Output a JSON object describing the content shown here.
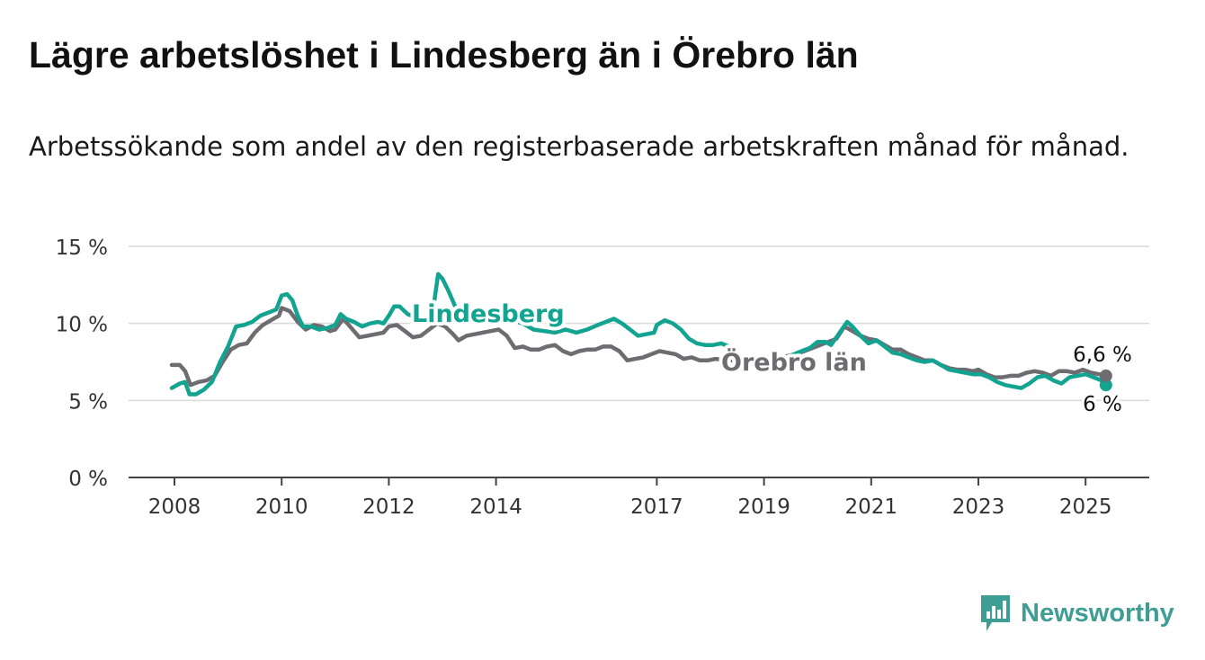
{
  "title": "Lägre arbetslöshet i Lindesberg än i Örebro län",
  "subtitle": "Arbetssökande som andel av den registerbaserade arbetskraften månad för månad.",
  "brand": {
    "name": "Newsworthy",
    "color": "#3f9e94"
  },
  "chart_data": {
    "type": "line",
    "x_range": [
      2007.95,
      2025.4
    ],
    "ylim": [
      0,
      15
    ],
    "y_ticks": [
      {
        "value": 0,
        "label": "0 %"
      },
      {
        "value": 5,
        "label": "5 %"
      },
      {
        "value": 10,
        "label": "10 %"
      },
      {
        "value": 15,
        "label": "15 %"
      }
    ],
    "x_ticks": [
      {
        "value": 2008,
        "label": "2008"
      },
      {
        "value": 2010,
        "label": "2010"
      },
      {
        "value": 2012,
        "label": "2012"
      },
      {
        "value": 2014,
        "label": "2014"
      },
      {
        "value": 2017,
        "label": "2017"
      },
      {
        "value": 2019,
        "label": "2019"
      },
      {
        "value": 2021,
        "label": "2021"
      },
      {
        "value": 2023,
        "label": "2023"
      },
      {
        "value": 2025,
        "label": "2025"
      }
    ],
    "grid": true,
    "series": [
      {
        "name": "Lindesberg",
        "color": "#12a391",
        "end_label": "6 %",
        "data": [
          [
            2007.95,
            5.8
          ],
          [
            2008.1,
            6.1
          ],
          [
            2008.2,
            6.2
          ],
          [
            2008.28,
            5.4
          ],
          [
            2008.4,
            5.4
          ],
          [
            2008.55,
            5.7
          ],
          [
            2008.7,
            6.2
          ],
          [
            2008.85,
            7.5
          ],
          [
            2009.0,
            8.5
          ],
          [
            2009.15,
            9.8
          ],
          [
            2009.3,
            9.9
          ],
          [
            2009.45,
            10.1
          ],
          [
            2009.6,
            10.5
          ],
          [
            2009.75,
            10.7
          ],
          [
            2009.9,
            10.9
          ],
          [
            2010.0,
            11.8
          ],
          [
            2010.1,
            11.9
          ],
          [
            2010.2,
            11.5
          ],
          [
            2010.3,
            10.5
          ],
          [
            2010.4,
            9.8
          ],
          [
            2010.55,
            9.8
          ],
          [
            2010.7,
            9.6
          ],
          [
            2010.85,
            9.7
          ],
          [
            2011.0,
            9.9
          ],
          [
            2011.1,
            10.6
          ],
          [
            2011.2,
            10.3
          ],
          [
            2011.35,
            10.1
          ],
          [
            2011.5,
            9.8
          ],
          [
            2011.65,
            10.0
          ],
          [
            2011.8,
            10.1
          ],
          [
            2011.9,
            10.0
          ],
          [
            2012.0,
            10.5
          ],
          [
            2012.1,
            11.1
          ],
          [
            2012.2,
            11.1
          ],
          [
            2012.35,
            10.6
          ],
          [
            2012.5,
            10.4
          ],
          [
            2012.6,
            10.1
          ],
          [
            2012.75,
            10.3
          ],
          [
            2012.85,
            11.5
          ],
          [
            2012.92,
            13.2
          ],
          [
            2013.0,
            12.9
          ],
          [
            2013.1,
            12.2
          ],
          [
            2013.3,
            10.6
          ],
          [
            2013.5,
            10.1
          ],
          [
            2013.7,
            10.3
          ],
          [
            2013.9,
            10.1
          ],
          [
            2014.1,
            10.4
          ],
          [
            2014.3,
            10.2
          ],
          [
            2014.5,
            10.0
          ],
          [
            2014.7,
            9.6
          ],
          [
            2014.9,
            9.5
          ],
          [
            2015.1,
            9.4
          ],
          [
            2015.3,
            9.6
          ],
          [
            2015.5,
            9.4
          ],
          [
            2015.7,
            9.6
          ],
          [
            2015.9,
            9.9
          ],
          [
            2016.05,
            10.1
          ],
          [
            2016.2,
            10.3
          ],
          [
            2016.35,
            10.0
          ],
          [
            2016.5,
            9.6
          ],
          [
            2016.65,
            9.2
          ],
          [
            2016.8,
            9.3
          ],
          [
            2016.95,
            9.4
          ],
          [
            2017.0,
            9.9
          ],
          [
            2017.15,
            10.2
          ],
          [
            2017.3,
            10.0
          ],
          [
            2017.45,
            9.6
          ],
          [
            2017.6,
            9.0
          ],
          [
            2017.75,
            8.7
          ],
          [
            2017.9,
            8.6
          ],
          [
            2018.05,
            8.6
          ],
          [
            2018.2,
            8.7
          ],
          [
            2018.35,
            8.5
          ],
          [
            2018.45,
            8.3
          ],
          [
            2018.55,
            7.9
          ],
          [
            2018.7,
            7.8
          ],
          [
            2018.9,
            7.7
          ],
          [
            2019.1,
            7.6
          ],
          [
            2019.3,
            7.7
          ],
          [
            2019.5,
            7.9
          ],
          [
            2019.7,
            8.2
          ],
          [
            2019.85,
            8.4
          ],
          [
            2020.0,
            8.8
          ],
          [
            2020.15,
            8.8
          ],
          [
            2020.25,
            8.6
          ],
          [
            2020.35,
            9.1
          ],
          [
            2020.45,
            9.6
          ],
          [
            2020.55,
            10.1
          ],
          [
            2020.65,
            9.8
          ],
          [
            2020.8,
            9.2
          ],
          [
            2020.95,
            8.7
          ],
          [
            2021.1,
            8.9
          ],
          [
            2021.25,
            8.5
          ],
          [
            2021.4,
            8.1
          ],
          [
            2021.55,
            8.0
          ],
          [
            2021.7,
            7.8
          ],
          [
            2021.85,
            7.6
          ],
          [
            2022.0,
            7.5
          ],
          [
            2022.15,
            7.6
          ],
          [
            2022.3,
            7.3
          ],
          [
            2022.45,
            7.0
          ],
          [
            2022.6,
            6.9
          ],
          [
            2022.75,
            6.8
          ],
          [
            2022.9,
            6.7
          ],
          [
            2023.05,
            6.7
          ],
          [
            2023.2,
            6.5
          ],
          [
            2023.35,
            6.2
          ],
          [
            2023.5,
            6.0
          ],
          [
            2023.65,
            5.9
          ],
          [
            2023.8,
            5.8
          ],
          [
            2023.95,
            6.1
          ],
          [
            2024.1,
            6.5
          ],
          [
            2024.25,
            6.6
          ],
          [
            2024.4,
            6.3
          ],
          [
            2024.55,
            6.1
          ],
          [
            2024.7,
            6.5
          ],
          [
            2024.85,
            6.6
          ],
          [
            2025.0,
            6.7
          ],
          [
            2025.15,
            6.5
          ],
          [
            2025.3,
            6.3
          ],
          [
            2025.38,
            6.0
          ]
        ]
      },
      {
        "name": "Örebro län",
        "color": "#6e6c70",
        "end_label": "6,6 %",
        "data": [
          [
            2007.95,
            7.3
          ],
          [
            2008.1,
            7.3
          ],
          [
            2008.2,
            6.9
          ],
          [
            2008.3,
            6.0
          ],
          [
            2008.45,
            6.2
          ],
          [
            2008.6,
            6.3
          ],
          [
            2008.75,
            6.6
          ],
          [
            2008.9,
            7.5
          ],
          [
            2009.05,
            8.3
          ],
          [
            2009.2,
            8.6
          ],
          [
            2009.35,
            8.7
          ],
          [
            2009.5,
            9.4
          ],
          [
            2009.65,
            9.9
          ],
          [
            2009.8,
            10.2
          ],
          [
            2009.95,
            10.5
          ],
          [
            2010.0,
            11.0
          ],
          [
            2010.15,
            10.8
          ],
          [
            2010.3,
            10.1
          ],
          [
            2010.45,
            9.6
          ],
          [
            2010.6,
            9.9
          ],
          [
            2010.75,
            9.8
          ],
          [
            2010.9,
            9.5
          ],
          [
            2011.0,
            9.6
          ],
          [
            2011.15,
            10.3
          ],
          [
            2011.3,
            9.7
          ],
          [
            2011.45,
            9.1
          ],
          [
            2011.6,
            9.2
          ],
          [
            2011.75,
            9.3
          ],
          [
            2011.9,
            9.4
          ],
          [
            2012.0,
            9.8
          ],
          [
            2012.15,
            9.9
          ],
          [
            2012.3,
            9.5
          ],
          [
            2012.45,
            9.1
          ],
          [
            2012.6,
            9.2
          ],
          [
            2012.75,
            9.6
          ],
          [
            2012.9,
            10.0
          ],
          [
            2013.05,
            9.8
          ],
          [
            2013.2,
            9.3
          ],
          [
            2013.3,
            8.9
          ],
          [
            2013.45,
            9.2
          ],
          [
            2013.6,
            9.3
          ],
          [
            2013.75,
            9.4
          ],
          [
            2013.9,
            9.5
          ],
          [
            2014.05,
            9.6
          ],
          [
            2014.2,
            9.2
          ],
          [
            2014.35,
            8.4
          ],
          [
            2014.5,
            8.5
          ],
          [
            2014.65,
            8.3
          ],
          [
            2014.8,
            8.3
          ],
          [
            2014.95,
            8.5
          ],
          [
            2015.1,
            8.6
          ],
          [
            2015.25,
            8.2
          ],
          [
            2015.4,
            8.0
          ],
          [
            2015.55,
            8.2
          ],
          [
            2015.7,
            8.3
          ],
          [
            2015.85,
            8.3
          ],
          [
            2016.0,
            8.5
          ],
          [
            2016.15,
            8.5
          ],
          [
            2016.3,
            8.2
          ],
          [
            2016.45,
            7.6
          ],
          [
            2016.6,
            7.7
          ],
          [
            2016.75,
            7.8
          ],
          [
            2016.9,
            8.0
          ],
          [
            2017.05,
            8.2
          ],
          [
            2017.2,
            8.1
          ],
          [
            2017.35,
            8.0
          ],
          [
            2017.5,
            7.7
          ],
          [
            2017.65,
            7.8
          ],
          [
            2017.8,
            7.6
          ],
          [
            2017.95,
            7.6
          ],
          [
            2018.1,
            7.7
          ],
          [
            2018.25,
            7.6
          ],
          [
            2018.4,
            7.6
          ],
          [
            2018.55,
            7.6
          ],
          [
            2018.7,
            7.6
          ],
          [
            2018.85,
            7.6
          ],
          [
            2019.0,
            7.6
          ],
          [
            2019.15,
            7.6
          ],
          [
            2019.3,
            7.7
          ],
          [
            2019.45,
            7.9
          ],
          [
            2019.6,
            8.0
          ],
          [
            2019.75,
            8.2
          ],
          [
            2019.9,
            8.4
          ],
          [
            2020.05,
            8.6
          ],
          [
            2020.2,
            8.8
          ],
          [
            2020.35,
            9.0
          ],
          [
            2020.5,
            9.8
          ],
          [
            2020.65,
            9.5
          ],
          [
            2020.8,
            9.2
          ],
          [
            2020.95,
            9.0
          ],
          [
            2021.1,
            8.9
          ],
          [
            2021.25,
            8.6
          ],
          [
            2021.4,
            8.3
          ],
          [
            2021.55,
            8.3
          ],
          [
            2021.7,
            8.0
          ],
          [
            2021.85,
            7.8
          ],
          [
            2022.0,
            7.6
          ],
          [
            2022.15,
            7.6
          ],
          [
            2022.3,
            7.3
          ],
          [
            2022.45,
            7.1
          ],
          [
            2022.6,
            7.0
          ],
          [
            2022.75,
            7.0
          ],
          [
            2022.9,
            6.9
          ],
          [
            2023.0,
            7.0
          ],
          [
            2023.15,
            6.7
          ],
          [
            2023.3,
            6.5
          ],
          [
            2023.45,
            6.5
          ],
          [
            2023.6,
            6.6
          ],
          [
            2023.75,
            6.6
          ],
          [
            2023.9,
            6.8
          ],
          [
            2024.05,
            6.9
          ],
          [
            2024.2,
            6.8
          ],
          [
            2024.35,
            6.6
          ],
          [
            2024.5,
            6.9
          ],
          [
            2024.65,
            6.9
          ],
          [
            2024.8,
            6.8
          ],
          [
            2024.95,
            7.0
          ],
          [
            2025.1,
            6.8
          ],
          [
            2025.25,
            6.7
          ],
          [
            2025.38,
            6.6
          ]
        ]
      }
    ]
  }
}
